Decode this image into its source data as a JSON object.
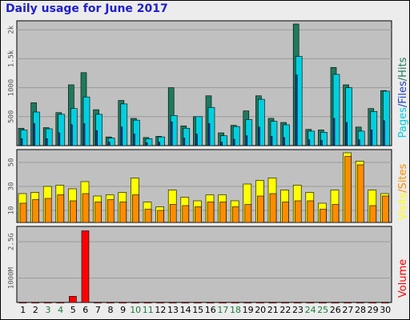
{
  "chart_data": {
    "type": "bar",
    "title": "Daily usage for June 2017",
    "categories": [
      "1",
      "2",
      "3",
      "4",
      "5",
      "6",
      "7",
      "8",
      "9",
      "10",
      "11",
      "12",
      "13",
      "14",
      "15",
      "16",
      "17",
      "18",
      "19",
      "20",
      "21",
      "22",
      "23",
      "24",
      "25",
      "26",
      "27",
      "28",
      "29",
      "30"
    ],
    "weekend_days": [
      "3",
      "4",
      "10",
      "11",
      "17",
      "18",
      "24",
      "25"
    ],
    "panels": [
      {
        "name": "hits-files-pages",
        "side_label": {
          "pages": "Pages",
          "files": "Files",
          "hits": "Hits",
          "separator": "/"
        },
        "ylim": [
          0,
          2100
        ],
        "yticks": [
          {
            "value": 500,
            "label": "500"
          },
          {
            "value": 1000,
            "label": "1000"
          },
          {
            "value": 1500,
            "label": "1.5k"
          },
          {
            "value": 2000,
            "label": "2k"
          }
        ],
        "series": [
          {
            "name": "Hits",
            "color": "#1e7a5e",
            "values": [
              300,
              740,
              310,
              570,
              1050,
              1260,
              620,
              150,
              780,
              470,
              140,
              160,
              1000,
              340,
              500,
              860,
              220,
              350,
              600,
              860,
              470,
              400,
              2100,
              280,
              270,
              1350,
              1050,
              320,
              640,
              950
            ]
          },
          {
            "name": "Files",
            "color": "#00d0e0",
            "values": [
              270,
              580,
              290,
              540,
              640,
              840,
              540,
              130,
              720,
              440,
              120,
              150,
              520,
              300,
              500,
              660,
              170,
              330,
              450,
              800,
              420,
              360,
              1540,
              250,
              230,
              1230,
              1000,
              250,
              590,
              940
            ]
          },
          {
            "name": "Pages",
            "color": "#2040c0",
            "values": [
              120,
              380,
              120,
              220,
              360,
              380,
              260,
              60,
              320,
              200,
              50,
              60,
              410,
              130,
              200,
              380,
              60,
              110,
              170,
              320,
              160,
              140,
              1220,
              100,
              90,
              470,
              400,
              100,
              270,
              430
            ]
          }
        ]
      },
      {
        "name": "visits-sites",
        "side_label": {
          "visits": "Visits",
          "sites": "Sites",
          "separator": "/"
        },
        "ylim": [
          0,
          58
        ],
        "yticks": [
          {
            "value": 10,
            "label": "10"
          },
          {
            "value": 30,
            "label": "30"
          },
          {
            "value": 50,
            "label": "50"
          }
        ],
        "series": [
          {
            "name": "Visits",
            "color": "#ffff00",
            "values": [
              24,
              25,
              30,
              31,
              28,
              34,
              22,
              23,
              25,
              37,
              17,
              13,
              27,
              21,
              18,
              23,
              23,
              18,
              32,
              35,
              37,
              27,
              31,
              25,
              16,
              27,
              58,
              51,
              27,
              24
            ]
          },
          {
            "name": "Sites",
            "color": "#ff8c00",
            "values": [
              16,
              19,
              20,
              23,
              18,
              24,
              17,
              19,
              17,
              23,
              11,
              10,
              15,
              14,
              13,
              17,
              17,
              13,
              15,
              22,
              24,
              17,
              18,
              18,
              11,
              15,
              55,
              48,
              14,
              22
            ]
          }
        ]
      },
      {
        "name": "volume",
        "side_label": {
          "volume": "Volume"
        },
        "ylim": [
          0,
          3000
        ],
        "yticks": [
          {
            "value": 1000,
            "label": "1000M"
          },
          {
            "value": 2500,
            "label": "2.5G"
          }
        ],
        "series": [
          {
            "name": "Volume",
            "color": "#ff0000",
            "values": [
              5,
              5,
              5,
              5,
              250,
              2950,
              5,
              5,
              5,
              5,
              5,
              5,
              5,
              5,
              5,
              5,
              5,
              5,
              5,
              5,
              5,
              5,
              5,
              5,
              5,
              5,
              5,
              5,
              5,
              5
            ]
          }
        ]
      }
    ]
  }
}
